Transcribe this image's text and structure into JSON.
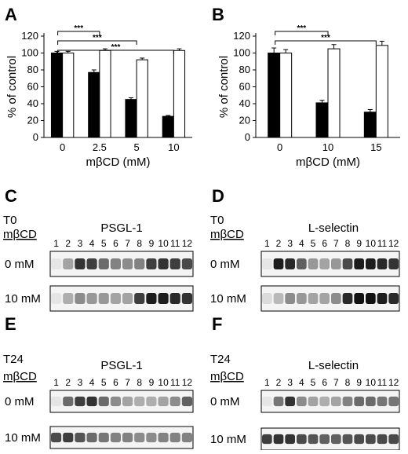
{
  "panels": {
    "A": "A",
    "B": "B",
    "C": "C",
    "D": "D",
    "E": "E",
    "F": "F"
  },
  "chart_data": [
    {
      "type": "bar",
      "panel": "A",
      "ylabel": "% of control",
      "xlabel": "mβCD (mM)",
      "categories": [
        "0",
        "2.5",
        "5",
        "10"
      ],
      "ylim": [
        0,
        120
      ],
      "yticks": [
        "0",
        "20",
        "40",
        "60",
        "80",
        "100",
        "120"
      ],
      "series": [
        {
          "fill": "#000000",
          "values": [
            100,
            77,
            45,
            25
          ],
          "errors": [
            2,
            3,
            2,
            1
          ]
        },
        {
          "fill": "#ffffff",
          "values": [
            100,
            103,
            92,
            103
          ],
          "errors": [
            2,
            2,
            2,
            2
          ]
        }
      ],
      "significance": [
        {
          "from": 0,
          "to": 1,
          "label": "***"
        },
        {
          "from": 0,
          "to": 2,
          "label": "***"
        },
        {
          "from": 0,
          "to": 3,
          "label": "***"
        }
      ]
    },
    {
      "type": "bar",
      "panel": "B",
      "ylabel": "% of control",
      "xlabel": "mβCD (mM)",
      "categories": [
        "0",
        "10",
        "15"
      ],
      "ylim": [
        0,
        120
      ],
      "yticks": [
        "0",
        "20",
        "40",
        "60",
        "80",
        "100",
        "120"
      ],
      "series": [
        {
          "fill": "#000000",
          "values": [
            100,
            41,
            30
          ],
          "errors": [
            6,
            3,
            3
          ]
        },
        {
          "fill": "#ffffff",
          "values": [
            100,
            105,
            109
          ],
          "errors": [
            4,
            5,
            5
          ]
        }
      ],
      "significance": [
        {
          "from": 0,
          "to": 1,
          "label": "***"
        },
        {
          "from": 0,
          "to": 2,
          "label": "***"
        }
      ]
    }
  ],
  "blots": [
    {
      "panel": "C",
      "time": "T0",
      "treatment": "mβCD",
      "protein": "PSGL-1",
      "lanes": [
        "1",
        "2",
        "3",
        "4",
        "5",
        "6",
        "7",
        "8",
        "9",
        "10",
        "11",
        "12"
      ],
      "rows": [
        {
          "label": "0 mM",
          "intensity": [
            0.05,
            0.35,
            0.85,
            0.8,
            0.6,
            0.5,
            0.45,
            0.5,
            0.8,
            0.85,
            0.8,
            0.75
          ]
        },
        {
          "label": "10 mM",
          "intensity": [
            0.05,
            0.3,
            0.45,
            0.4,
            0.4,
            0.35,
            0.35,
            0.8,
            0.95,
            0.95,
            0.9,
            0.85
          ]
        }
      ]
    },
    {
      "panel": "D",
      "time": "T0",
      "treatment": "mβCD",
      "protein": "L-selectin",
      "lanes": [
        "1",
        "2",
        "3",
        "4",
        "5",
        "6",
        "7",
        "8",
        "9",
        "10",
        "11",
        "12"
      ],
      "rows": [
        {
          "label": "0 mM",
          "intensity": [
            0.05,
            0.95,
            0.9,
            0.65,
            0.4,
            0.35,
            0.4,
            0.75,
            0.95,
            0.95,
            0.9,
            0.85
          ]
        },
        {
          "label": "10 mM",
          "intensity": [
            0.1,
            0.25,
            0.45,
            0.4,
            0.35,
            0.35,
            0.45,
            0.9,
            1.0,
            1.0,
            0.95,
            0.9
          ]
        }
      ]
    },
    {
      "panel": "E",
      "time": "T24",
      "treatment": "mβCD",
      "protein": "PSGL-1",
      "lanes": [
        "1",
        "2",
        "3",
        "4",
        "5",
        "6",
        "7",
        "8",
        "9",
        "10",
        "11",
        "12"
      ],
      "rows": [
        {
          "label": "0 mM",
          "intensity": [
            0.05,
            0.6,
            0.8,
            0.85,
            0.6,
            0.45,
            0.35,
            0.3,
            0.3,
            0.35,
            0.45,
            0.65
          ]
        },
        {
          "label": "10 mM",
          "intensity": [
            0.75,
            0.8,
            0.7,
            0.6,
            0.55,
            0.5,
            0.5,
            0.45,
            0.45,
            0.5,
            0.5,
            0.5
          ]
        }
      ]
    },
    {
      "panel": "F",
      "time": "T24",
      "treatment": "mβCD",
      "protein": "L-selectin",
      "lanes": [
        "1",
        "2",
        "3",
        "4",
        "5",
        "6",
        "7",
        "8",
        "9",
        "10",
        "11",
        "12"
      ],
      "rows": [
        {
          "label": "0 mM",
          "intensity": [
            0.05,
            0.55,
            0.85,
            0.45,
            0.35,
            0.3,
            0.35,
            0.5,
            0.6,
            0.6,
            0.55,
            0.55
          ]
        },
        {
          "label": "10 mM",
          "intensity": [
            0.8,
            0.85,
            0.85,
            0.75,
            0.7,
            0.65,
            0.65,
            0.7,
            0.75,
            0.75,
            0.75,
            0.75
          ]
        }
      ]
    }
  ]
}
